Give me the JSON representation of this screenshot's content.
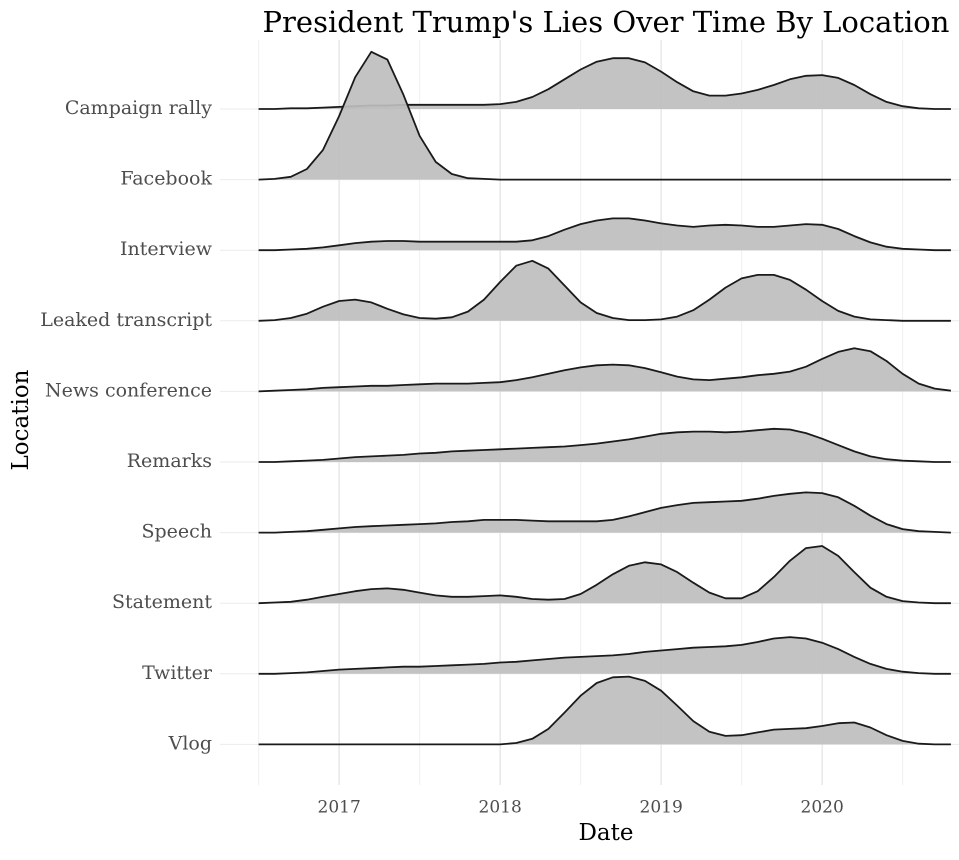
{
  "chart_data": {
    "type": "ridgeline",
    "title": "President Trump's Lies Over Time By Location",
    "x_label": "Date",
    "y_label": "Location",
    "fill": "#bebebe",
    "line_color": "#1a1a1a",
    "grid": true,
    "xlim": [
      2016.26,
      2020.85
    ],
    "xticks": [
      2017,
      2018,
      2019,
      2020
    ],
    "x": [
      2016.5,
      2016.6,
      2016.7,
      2016.8,
      2016.9,
      2017.0,
      2017.1,
      2017.2,
      2017.3,
      2017.4,
      2017.5,
      2017.6,
      2017.7,
      2017.8,
      2017.9,
      2018.0,
      2018.1,
      2018.2,
      2018.3,
      2018.4,
      2018.5,
      2018.6,
      2018.7,
      2018.8,
      2018.9,
      2019.0,
      2019.1,
      2019.2,
      2019.3,
      2019.4,
      2019.5,
      2019.6,
      2019.7,
      2019.8,
      2019.9,
      2020.0,
      2020.1,
      2020.2,
      2020.3,
      2020.4,
      2020.5,
      2020.6,
      2020.7,
      2020.8
    ],
    "series": [
      {
        "name": "Campaign rally",
        "values": [
          0,
          0,
          0.01,
          0.01,
          0.02,
          0.03,
          0.04,
          0.05,
          0.05,
          0.06,
          0.06,
          0.06,
          0.06,
          0.06,
          0.06,
          0.07,
          0.1,
          0.17,
          0.28,
          0.42,
          0.56,
          0.67,
          0.72,
          0.72,
          0.66,
          0.53,
          0.38,
          0.25,
          0.19,
          0.19,
          0.22,
          0.27,
          0.34,
          0.42,
          0.47,
          0.48,
          0.44,
          0.34,
          0.21,
          0.1,
          0.04,
          0.01,
          0,
          0
        ]
      },
      {
        "name": "Facebook",
        "values": [
          0,
          0.01,
          0.04,
          0.15,
          0.42,
          0.9,
          1.45,
          1.81,
          1.7,
          1.2,
          0.62,
          0.25,
          0.08,
          0.02,
          0.01,
          0,
          0,
          0,
          0,
          0,
          0,
          0,
          0,
          0,
          0,
          0,
          0,
          0,
          0,
          0,
          0,
          0,
          0,
          0,
          0,
          0,
          0,
          0,
          0,
          0,
          0,
          0,
          0,
          0
        ]
      },
      {
        "name": "Interview",
        "values": [
          0,
          0,
          0.01,
          0.02,
          0.04,
          0.07,
          0.1,
          0.12,
          0.13,
          0.13,
          0.12,
          0.12,
          0.12,
          0.12,
          0.12,
          0.12,
          0.12,
          0.14,
          0.2,
          0.29,
          0.37,
          0.42,
          0.45,
          0.45,
          0.42,
          0.38,
          0.35,
          0.33,
          0.35,
          0.36,
          0.35,
          0.33,
          0.33,
          0.35,
          0.37,
          0.36,
          0.3,
          0.2,
          0.11,
          0.05,
          0.02,
          0.01,
          0,
          0
        ]
      },
      {
        "name": "Leaked transcript",
        "values": [
          0,
          0.01,
          0.04,
          0.1,
          0.2,
          0.28,
          0.3,
          0.26,
          0.17,
          0.09,
          0.04,
          0.03,
          0.05,
          0.13,
          0.3,
          0.55,
          0.78,
          0.85,
          0.74,
          0.5,
          0.26,
          0.11,
          0.04,
          0.01,
          0.01,
          0.02,
          0.06,
          0.15,
          0.3,
          0.47,
          0.6,
          0.65,
          0.65,
          0.58,
          0.44,
          0.28,
          0.14,
          0.06,
          0.02,
          0.01,
          0,
          0,
          0,
          0
        ]
      },
      {
        "name": "News conference",
        "values": [
          0,
          0.01,
          0.02,
          0.03,
          0.05,
          0.06,
          0.07,
          0.08,
          0.08,
          0.09,
          0.1,
          0.11,
          0.11,
          0.11,
          0.12,
          0.13,
          0.16,
          0.2,
          0.25,
          0.3,
          0.34,
          0.37,
          0.38,
          0.37,
          0.33,
          0.27,
          0.21,
          0.17,
          0.16,
          0.18,
          0.2,
          0.23,
          0.25,
          0.28,
          0.35,
          0.46,
          0.56,
          0.61,
          0.57,
          0.43,
          0.25,
          0.11,
          0.04,
          0.01
        ]
      },
      {
        "name": "Remarks",
        "values": [
          0,
          0,
          0.01,
          0.02,
          0.03,
          0.05,
          0.07,
          0.08,
          0.09,
          0.1,
          0.12,
          0.13,
          0.15,
          0.16,
          0.17,
          0.18,
          0.19,
          0.2,
          0.21,
          0.22,
          0.24,
          0.26,
          0.29,
          0.32,
          0.36,
          0.4,
          0.42,
          0.43,
          0.43,
          0.42,
          0.43,
          0.45,
          0.47,
          0.46,
          0.41,
          0.33,
          0.24,
          0.15,
          0.08,
          0.04,
          0.02,
          0.01,
          0,
          0
        ]
      },
      {
        "name": "Speech",
        "values": [
          0,
          0,
          0.01,
          0.02,
          0.04,
          0.06,
          0.08,
          0.09,
          0.1,
          0.11,
          0.12,
          0.13,
          0.15,
          0.16,
          0.18,
          0.18,
          0.18,
          0.17,
          0.16,
          0.16,
          0.16,
          0.16,
          0.18,
          0.23,
          0.29,
          0.35,
          0.39,
          0.42,
          0.43,
          0.44,
          0.45,
          0.48,
          0.52,
          0.55,
          0.57,
          0.56,
          0.5,
          0.38,
          0.24,
          0.12,
          0.05,
          0.02,
          0.01,
          0
        ]
      },
      {
        "name": "Statement",
        "values": [
          0,
          0.01,
          0.02,
          0.05,
          0.09,
          0.13,
          0.17,
          0.2,
          0.21,
          0.19,
          0.15,
          0.11,
          0.09,
          0.09,
          0.1,
          0.11,
          0.09,
          0.06,
          0.05,
          0.06,
          0.13,
          0.26,
          0.41,
          0.53,
          0.58,
          0.55,
          0.44,
          0.29,
          0.15,
          0.07,
          0.07,
          0.17,
          0.37,
          0.6,
          0.78,
          0.81,
          0.67,
          0.44,
          0.22,
          0.09,
          0.03,
          0.01,
          0,
          0
        ]
      },
      {
        "name": "Twitter",
        "values": [
          0,
          0,
          0.01,
          0.02,
          0.04,
          0.06,
          0.07,
          0.08,
          0.09,
          0.1,
          0.1,
          0.11,
          0.12,
          0.13,
          0.14,
          0.16,
          0.17,
          0.19,
          0.21,
          0.23,
          0.24,
          0.25,
          0.26,
          0.28,
          0.31,
          0.33,
          0.35,
          0.37,
          0.38,
          0.39,
          0.41,
          0.45,
          0.5,
          0.52,
          0.5,
          0.44,
          0.35,
          0.24,
          0.14,
          0.07,
          0.03,
          0.01,
          0,
          0
        ]
      },
      {
        "name": "Vlog",
        "values": [
          0,
          0,
          0,
          0,
          0,
          0,
          0,
          0,
          0,
          0,
          0,
          0,
          0,
          0,
          0,
          0,
          0.02,
          0.08,
          0.22,
          0.45,
          0.69,
          0.87,
          0.95,
          0.96,
          0.9,
          0.76,
          0.55,
          0.33,
          0.18,
          0.12,
          0.13,
          0.17,
          0.21,
          0.22,
          0.23,
          0.26,
          0.3,
          0.31,
          0.24,
          0.13,
          0.05,
          0.01,
          0,
          0
        ]
      }
    ]
  }
}
